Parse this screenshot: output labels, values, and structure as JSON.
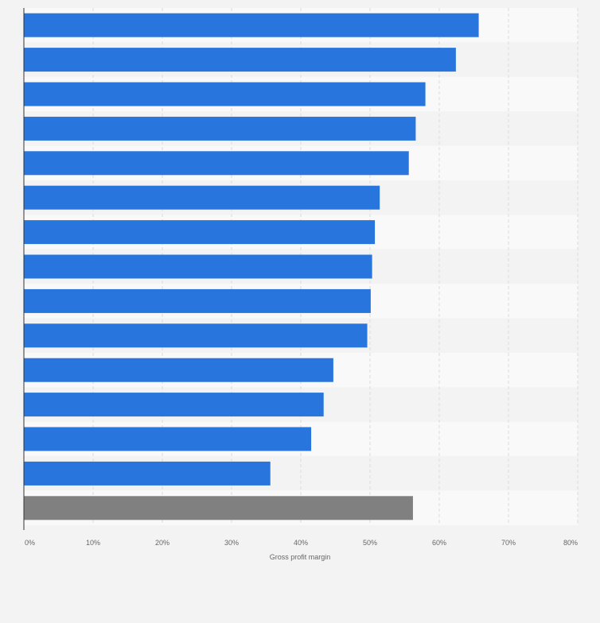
{
  "chart_data": {
    "type": "bar",
    "orientation": "horizontal",
    "categories": [
      "",
      "",
      "",
      "",
      "",
      "",
      "",
      "",
      "",
      "",
      "",
      "",
      "",
      "",
      ""
    ],
    "values": [
      65.7,
      62.4,
      58.0,
      56.6,
      55.6,
      51.4,
      50.7,
      50.3,
      50.1,
      49.6,
      44.7,
      43.3,
      41.5,
      35.6,
      56.2
    ],
    "highlight_index": 14,
    "xlabel": "Gross profit margin",
    "ylabel": "",
    "xlim": [
      0,
      80
    ],
    "x_ticks": [
      "0%",
      "10%",
      "20%",
      "30%",
      "40%",
      "50%",
      "60%",
      "70%",
      "80%"
    ],
    "grid": "vertical dashed",
    "legend": "none"
  },
  "colors": {
    "bar": "#2775dd",
    "highlight_bar": "#808080",
    "background": "#f3f3f3",
    "band_even": "#f9f9f9",
    "band_odd": "#f3f3f3",
    "gridline": "#dcdcdc",
    "axis": "#333333"
  }
}
